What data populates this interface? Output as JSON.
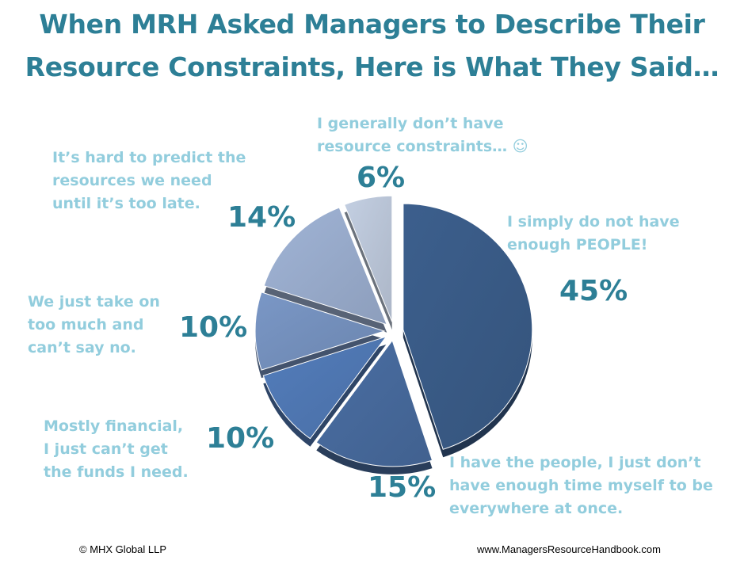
{
  "title": {
    "line1": "When MRH Asked Managers to Describe Their",
    "line2": "Resource Constraints, Here is What They Said…"
  },
  "chart_data": {
    "type": "pie",
    "title": "When MRH Asked Managers to Describe Their Resource Constraints, Here is What They Said…",
    "slices": [
      {
        "value": 45,
        "percent_label": "45%",
        "label_lines": [
          "I simply do not have",
          "enough PEOPLE!"
        ],
        "color": "#3c5f8d"
      },
      {
        "value": 15,
        "percent_label": "15%",
        "label_lines": [
          "I have the people, I just don’t",
          "have enough time myself to be",
          "everywhere at once."
        ],
        "color": "#4a6ea3"
      },
      {
        "value": 10,
        "percent_label": "10%",
        "label_lines": [
          "Mostly financial,",
          "I just can’t get",
          "the funds I need."
        ],
        "color": "#537dbb"
      },
      {
        "value": 10,
        "percent_label": "10%",
        "label_lines": [
          "We just take on",
          "too much and",
          "can’t say no."
        ],
        "color": "#7a97c6"
      },
      {
        "value": 14,
        "percent_label": "14%",
        "label_lines": [
          "It’s hard to predict the",
          "resources we need",
          "until it’s too late."
        ],
        "color": "#a0b4d6"
      },
      {
        "value": 6,
        "percent_label": "6%",
        "label_lines": [
          "I generally don’t have",
          "resource constraints… ☺"
        ],
        "color": "#c3cfe2"
      }
    ]
  },
  "footer": {
    "copyright": "© MHX Global LLP",
    "url": "www.ManagersResourceHandbook.com"
  }
}
